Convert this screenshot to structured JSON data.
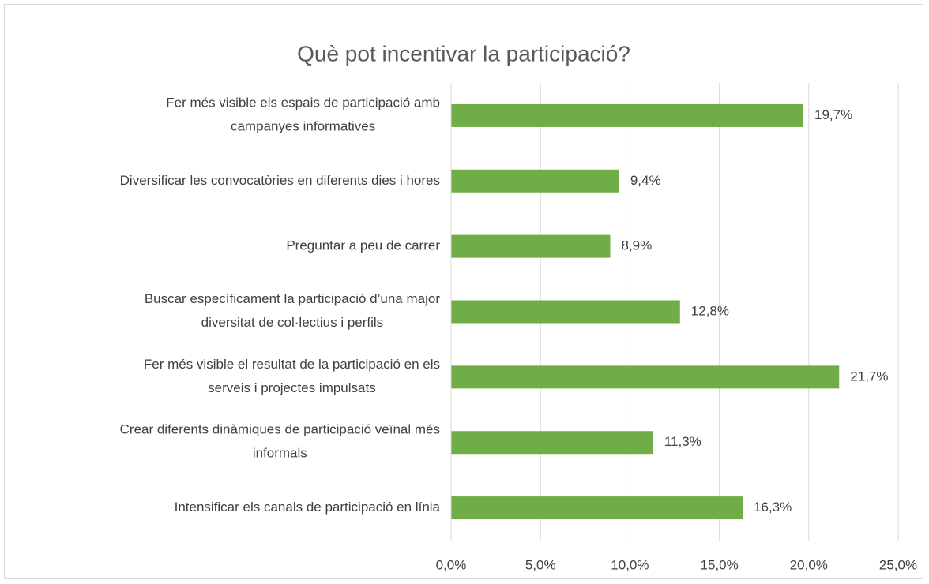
{
  "chart_data": {
    "type": "bar",
    "orientation": "horizontal",
    "title": "Què pot incentivar la participació?",
    "categories": [
      "Fer més visible els espais de participació amb\ncampanyes informatives",
      "Diversificar les convocatòries en diferents dies i hores",
      "Preguntar a peu de carrer",
      "Buscar específicament la participació d’una major\ndiversitat de col·lectius i perfils",
      "Fer més visible el resultat de la participació en els\nserveis i projectes impulsats",
      "Crear diferents dinàmiques de participació veïnal més\ninformals",
      "Intensificar els canals de participació en línia"
    ],
    "values": [
      19.7,
      9.4,
      8.9,
      12.8,
      21.7,
      11.3,
      16.3
    ],
    "value_labels": [
      "19,7%",
      "9,4%",
      "8,9%",
      "12,8%",
      "21,7%",
      "11,3%",
      "16,3%"
    ],
    "color": "#70ad47",
    "xlim": [
      0,
      25
    ],
    "xticks": [
      {
        "value": 0,
        "label": "0,0%"
      },
      {
        "value": 5,
        "label": "5,0%"
      },
      {
        "value": 10,
        "label": "10,0%"
      },
      {
        "value": 15,
        "label": "15,0%"
      },
      {
        "value": 20,
        "label": "20,0%"
      },
      {
        "value": 25,
        "label": "25,0%"
      }
    ],
    "grid": true
  }
}
